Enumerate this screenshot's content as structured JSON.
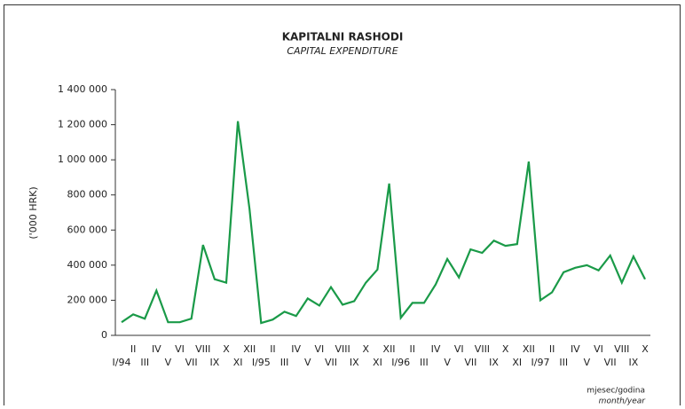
{
  "chart_data": {
    "type": "line",
    "title": "KAPITALNI RASHODI",
    "subtitle": "CAPITAL EXPENDITURE",
    "ylabel": "('000 HRK)",
    "xlabel": "mjesec/godina",
    "xlabel_subtitle": "month/year",
    "categories": [
      "I/94",
      "II",
      "III",
      "IV",
      "V",
      "VI",
      "VII",
      "VIII",
      "IX",
      "X",
      "XI",
      "XII",
      "I/95",
      "II",
      "III",
      "IV",
      "V",
      "VI",
      "VII",
      "VIII",
      "IX",
      "X",
      "XI",
      "XII",
      "I/96",
      "II",
      "III",
      "IV",
      "V",
      "VI",
      "VII",
      "VIII",
      "IX",
      "X",
      "XI",
      "XII",
      "I/97",
      "II",
      "III",
      "IV",
      "V",
      "VI",
      "VII",
      "VIII",
      "IX",
      "X"
    ],
    "series": [
      {
        "name": "Kapitalni rashodi",
        "color": "#1a9a48",
        "values": [
          75000,
          120000,
          95000,
          255000,
          75000,
          75000,
          95000,
          515000,
          320000,
          300000,
          1220000,
          720000,
          70000,
          90000,
          135000,
          110000,
          210000,
          170000,
          275000,
          175000,
          195000,
          300000,
          375000,
          865000,
          100000,
          185000,
          185000,
          290000,
          435000,
          330000,
          490000,
          470000,
          540000,
          510000,
          520000,
          990000,
          200000,
          245000,
          360000,
          385000,
          400000,
          370000,
          455000,
          300000,
          450000,
          320000
        ]
      }
    ],
    "ylim": [
      0,
      1400000
    ],
    "yticks": [
      0,
      {
        "value": 200000,
        "label": "200 000"
      },
      {
        "value": 400000,
        "label": "400 000"
      },
      {
        "value": 600000,
        "label": "600 000"
      },
      {
        "value": 800000,
        "label": "800 000"
      },
      {
        "value": 1000000,
        "label": "1 000 000"
      },
      {
        "value": 1200000,
        "label": "1 200 000"
      },
      {
        "value": 1400000,
        "label": "1 400 000"
      }
    ],
    "grid": false
  }
}
